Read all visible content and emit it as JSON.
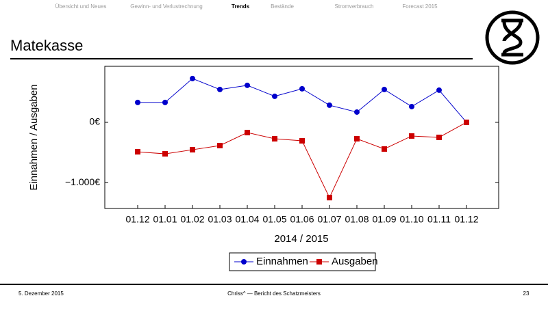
{
  "nav": [
    "Übersicht und Neues",
    "Gewinn- und Verlustrechnung",
    "Trends",
    "Bestände",
    "Stromverbrauch",
    "Forecast 2015"
  ],
  "title": "Matekasse",
  "footer": {
    "date": "5. Dezember 2015",
    "center": "Chriss^ — Bericht des Schatzmeisters",
    "page": "23"
  },
  "chart_data": {
    "type": "line",
    "x_label": "2014 / 2015",
    "y_label": "Einnahmen / Ausgaben",
    "categories": [
      "01.12",
      "01.01",
      "01.02",
      "01.03",
      "01.04",
      "01.05",
      "01.06",
      "01.07",
      "01.08",
      "01.09",
      "01.10",
      "01.11",
      "01.12"
    ],
    "series": [
      {
        "name": "Einnahmen",
        "color": "#0000cc",
        "marker": "circle",
        "values": [
          330,
          330,
          727,
          545,
          614,
          432,
          557,
          284,
          170,
          545,
          261,
          534,
          0
        ]
      },
      {
        "name": "Ausgaben",
        "color": "#cc0000",
        "marker": "square",
        "values": [
          -489,
          -523,
          -455,
          -386,
          -170,
          -273,
          -307,
          -1250,
          -273,
          -443,
          -227,
          -250,
          0
        ]
      }
    ],
    "ylim": [
      -1430,
      930
    ],
    "yticks": [
      {
        "value": 0,
        "label": "0€"
      },
      {
        "value": -1000,
        "label": "−1.000€"
      }
    ],
    "grid": false,
    "legend": "bottom"
  }
}
